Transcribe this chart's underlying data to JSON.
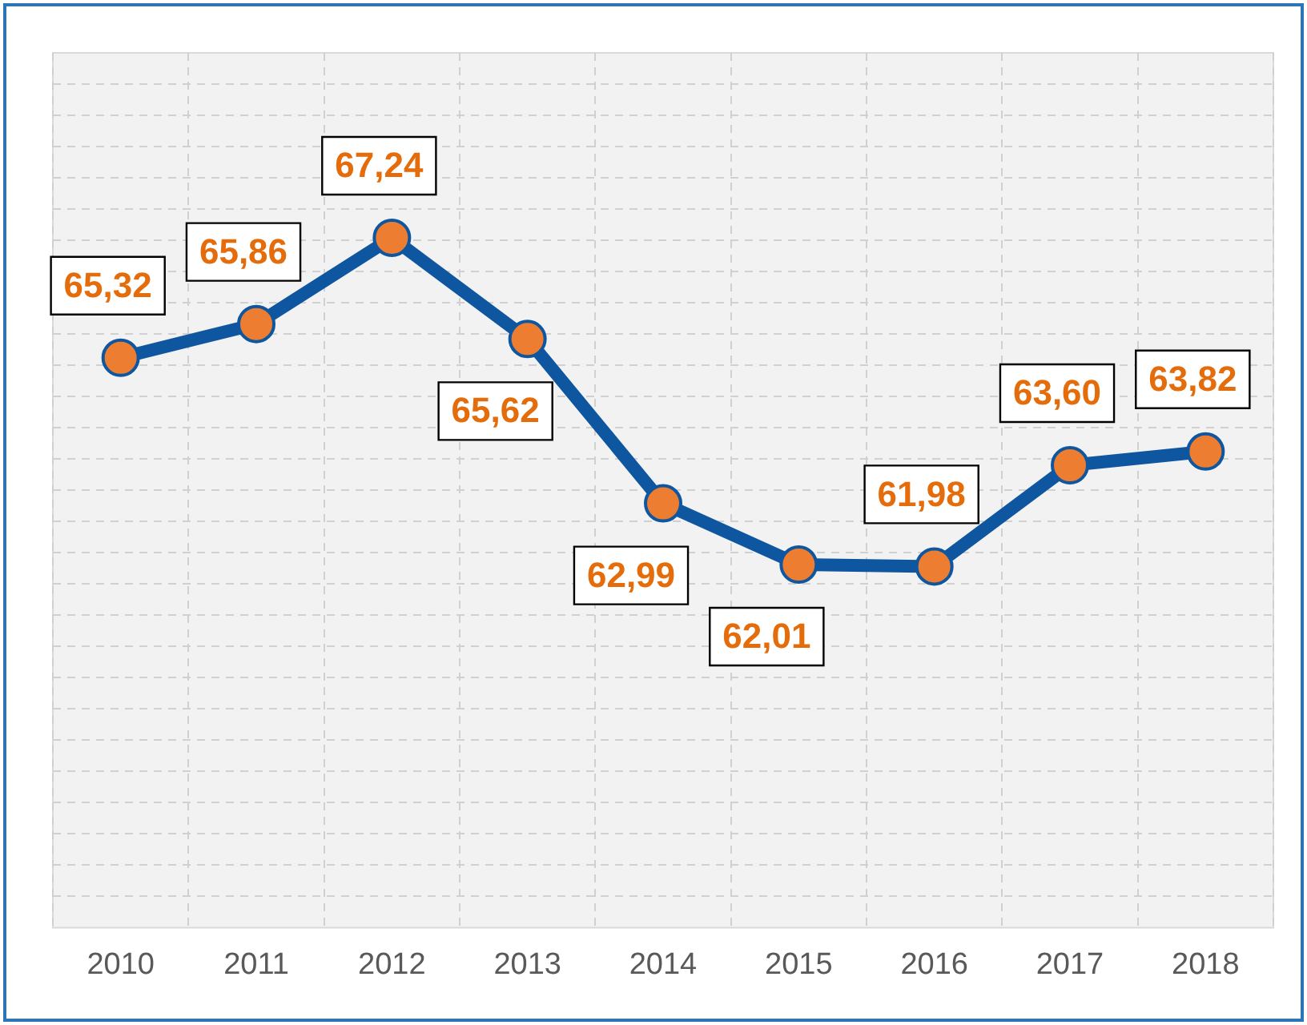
{
  "chart_data": {
    "type": "line",
    "categories": [
      "2010",
      "2011",
      "2012",
      "2013",
      "2014",
      "2015",
      "2016",
      "2017",
      "2018"
    ],
    "series": [
      {
        "color": "#0f56a0",
        "values": [
          65.32,
          65.86,
          67.24,
          65.62,
          62.99,
          62.01,
          61.98,
          63.6,
          63.82
        ],
        "value_labels": [
          "65,32",
          "65,86",
          "67,24",
          "65,62",
          "62,99",
          "62,01",
          "61,98",
          "63,60",
          "63,82"
        ]
      }
    ],
    "ylim": [
      56.2,
      70.2
    ],
    "yticks": [
      {
        "value": 56.7,
        "label": null
      },
      {
        "value": 57.2,
        "label": null
      },
      {
        "value": 57.7,
        "label": null
      },
      {
        "value": 58.2,
        "label": null
      },
      {
        "value": 58.7,
        "label": null
      },
      {
        "value": 59.2,
        "label": null
      },
      {
        "value": 59.7,
        "label": null
      },
      {
        "value": 60.2,
        "label": null
      },
      {
        "value": 60.7,
        "label": null
      },
      {
        "value": 61.2,
        "label": null
      },
      {
        "value": 61.7,
        "label": null
      },
      {
        "value": 62.2,
        "label": null
      },
      {
        "value": 62.7,
        "label": null
      },
      {
        "value": 63.2,
        "label": null
      },
      {
        "value": 63.7,
        "label": null
      },
      {
        "value": 64.2,
        "label": null
      },
      {
        "value": 64.7,
        "label": null
      },
      {
        "value": 65.2,
        "label": null
      },
      {
        "value": 65.7,
        "label": null
      },
      {
        "value": 66.2,
        "label": null
      },
      {
        "value": 66.7,
        "label": null
      },
      {
        "value": 67.2,
        "label": null
      },
      {
        "value": 67.7,
        "label": null
      },
      {
        "value": 68.2,
        "label": null
      },
      {
        "value": 68.7,
        "label": null
      },
      {
        "value": 69.2,
        "label": null
      },
      {
        "value": 69.7,
        "label": null
      }
    ],
    "tick_labels": "x",
    "grid": true,
    "legend": false,
    "marker": "circle",
    "line_style": "solid"
  }
}
